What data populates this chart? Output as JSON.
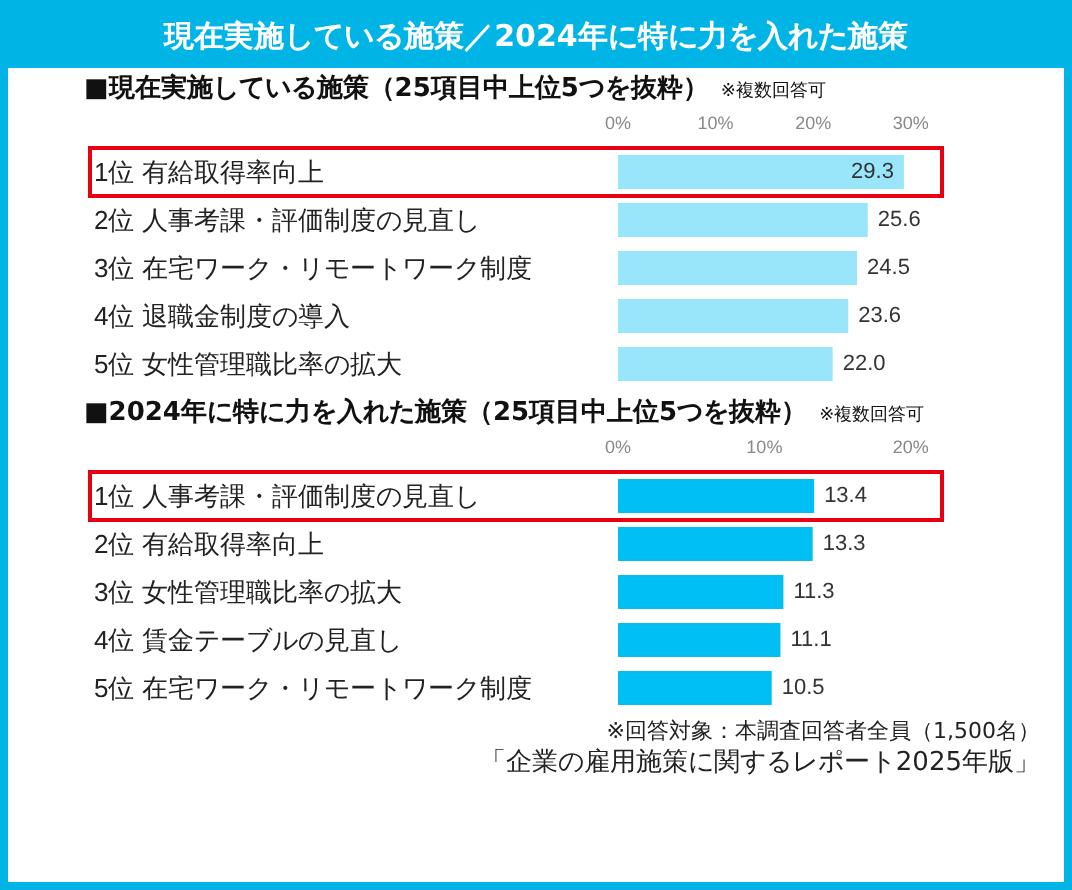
{
  "chart_data": [
    {
      "type": "bar",
      "orientation": "horizontal",
      "title": "現在実施している施策／2024年に特に力を入れた施策",
      "subtitle": "■現在実施している施策（25項目中上位5つを抜粋）",
      "annotations": [
        "※複数回答可"
      ],
      "categories": [
        "1位 有給取得率向上",
        "2位 人事考課・評価制度の見直し",
        "3位 在宅ワーク・リモートワーク制度",
        "4位 退職金制度の導入",
        "5位 女性管理職比率の拡大"
      ],
      "values": [
        29.3,
        25.6,
        24.5,
        23.6,
        22.0
      ],
      "value_labels": [
        "29.3",
        "25.6",
        "24.5",
        "23.6",
        "22.0"
      ],
      "color": "#99e6fb",
      "grid": false,
      "xlim": [
        0,
        33
      ],
      "xticks": [
        {
          "value": 0,
          "label": "0%"
        },
        {
          "value": 10,
          "label": "10%"
        },
        {
          "value": 20,
          "label": "20%"
        },
        {
          "value": 30,
          "label": "30%"
        }
      ]
    },
    {
      "type": "bar",
      "orientation": "horizontal",
      "title": "■2024年に特に力を入れた施策（25項目中上位5つを抜粋）",
      "annotations": [
        "※複数回答可",
        "※回答対象：本調査回答者全員（1,500名）",
        "「企業の雇用施策に関するレポート2025年版」"
      ],
      "categories": [
        "1位 人事考課・評価制度の見直し",
        "2位 有給取得率向上",
        "3位 女性管理職比率の拡大",
        "4位 賃金テーブルの見直し",
        "5位 在宅ワーク・リモートワーク制度"
      ],
      "values": [
        13.4,
        13.3,
        11.3,
        11.1,
        10.5
      ],
      "value_labels": [
        "13.4",
        "13.3",
        "11.3",
        "11.1",
        "10.5"
      ],
      "color": "#00bff3",
      "grid": false,
      "xlim": [
        0,
        22
      ],
      "xticks": [
        {
          "value": 0,
          "label": "0%"
        },
        {
          "value": 10,
          "label": "10%"
        },
        {
          "value": 20,
          "label": "20%"
        }
      ]
    }
  ]
}
